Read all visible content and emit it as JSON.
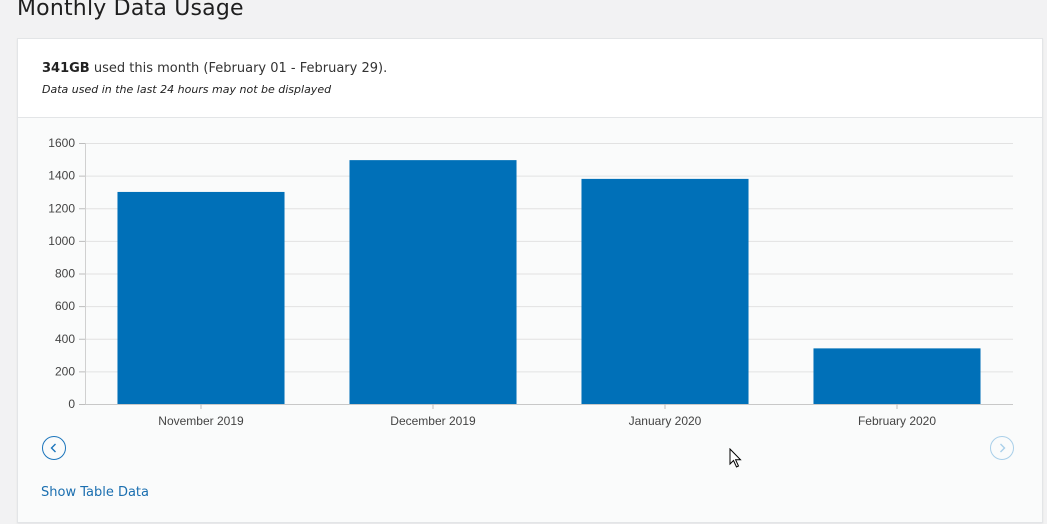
{
  "page": {
    "title": "Monthly Data Usage"
  },
  "summary": {
    "amount": "341GB",
    "text": " used this month (February 01 - February 29).",
    "note": "Data used in the last 24 hours may not be displayed"
  },
  "links": {
    "show_table": "Show Table Data"
  },
  "icons": {
    "prev": "chevron-left-icon",
    "next": "chevron-right-icon"
  },
  "colors": {
    "bar": "#0070b8",
    "link": "#1b6fb0",
    "nav_active": "#1b75bc",
    "nav_inactive": "#a9cfe9"
  },
  "chart_data": {
    "type": "bar",
    "categories": [
      "November 2019",
      "December 2019",
      "January 2020",
      "February 2020"
    ],
    "values": [
      1300,
      1495,
      1380,
      341
    ],
    "ylim": [
      0,
      1600
    ],
    "yticks": [
      0,
      200,
      400,
      600,
      800,
      1000,
      1200,
      1400,
      1600
    ],
    "grid": true,
    "title": "",
    "xlabel": "",
    "ylabel": ""
  }
}
